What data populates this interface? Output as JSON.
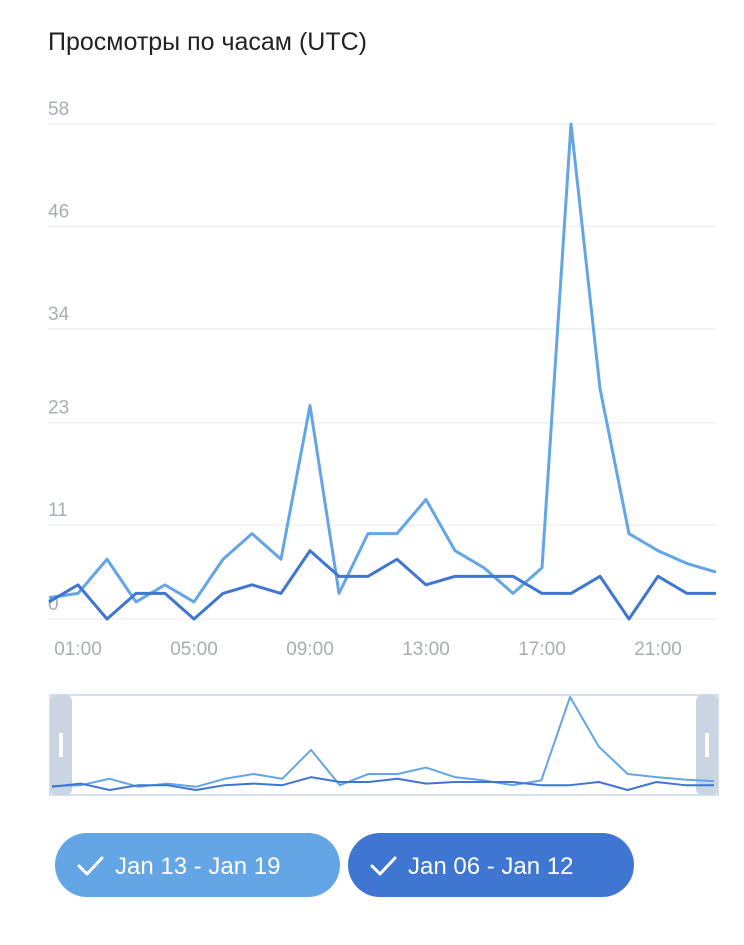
{
  "chart_data": {
    "type": "line",
    "title": "Просмотры по часам (UTC)",
    "categories": [
      null,
      "01:00",
      null,
      null,
      null,
      "05:00",
      null,
      null,
      null,
      "09:00",
      null,
      null,
      null,
      "13:00",
      null,
      null,
      null,
      "17:00",
      null,
      null,
      null,
      "21:00",
      null,
      null
    ],
    "series": [
      {
        "name": "Jan 13 - Jan 19",
        "color": "#64a5e6",
        "values": [
          2.5,
          3,
          7,
          2,
          4,
          2,
          7,
          10,
          7,
          25,
          3,
          10,
          10,
          14,
          8,
          6,
          3,
          6,
          58,
          27,
          10,
          8,
          6.5,
          5.5
        ]
      },
      {
        "name": "Jan 06 - Jan 12",
        "color": "#3f76d2",
        "values": [
          2,
          4,
          0,
          3,
          3,
          0,
          3,
          4,
          3,
          8,
          5,
          5,
          7,
          4,
          5,
          5,
          5,
          3,
          3,
          5,
          0,
          5,
          3,
          3
        ]
      }
    ],
    "ylim": [
      0,
      58
    ],
    "yticks": [
      0,
      11,
      23,
      34,
      46,
      58
    ],
    "grid": true
  }
}
